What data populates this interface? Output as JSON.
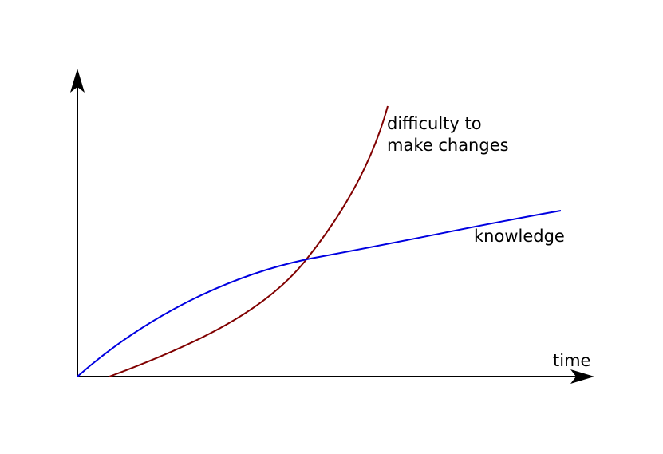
{
  "diagram": {
    "x_axis_label": "time",
    "curves": [
      {
        "label_lines": [
          "difficulty to",
          "make changes"
        ],
        "color": "#800000"
      },
      {
        "label_lines": [
          "knowledge"
        ],
        "color": "#0000e0"
      }
    ],
    "axis_color": "#000000"
  }
}
